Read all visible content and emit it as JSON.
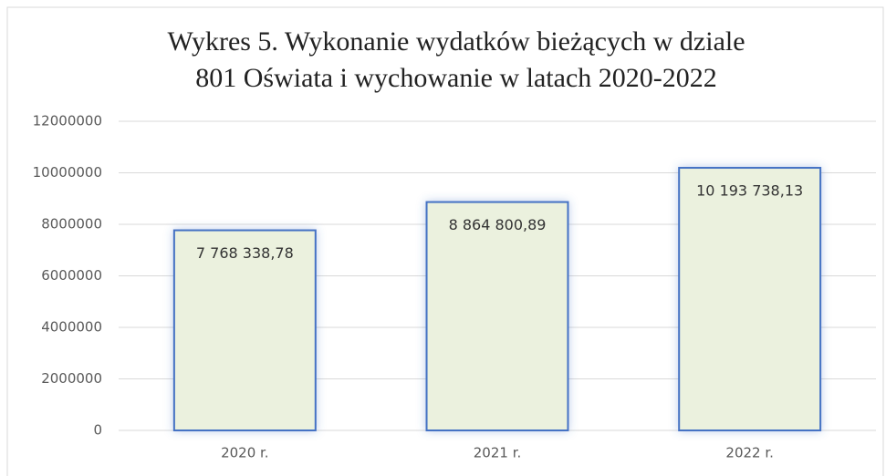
{
  "chart_data": {
    "type": "bar",
    "title": [
      "Wykres 5. Wykonanie  wydatków  bieżących  w dziale",
      "801 Oświata  i wychowanie  w latach 2020-2022"
    ],
    "categories": [
      "2020 r.",
      "2021 r.",
      "2022 r."
    ],
    "values": [
      7768338.78,
      8864800.89,
      10193738.13
    ],
    "value_labels": [
      "7 768 338,78",
      "8 864 800,89",
      "10 193 738,13"
    ],
    "color": "#ebf1de",
    "edge_color": "#4472c4",
    "ylim": [
      0,
      12000000
    ],
    "yticks": [
      0,
      2000000,
      4000000,
      6000000,
      8000000,
      10000000,
      12000000
    ],
    "grid": true
  }
}
